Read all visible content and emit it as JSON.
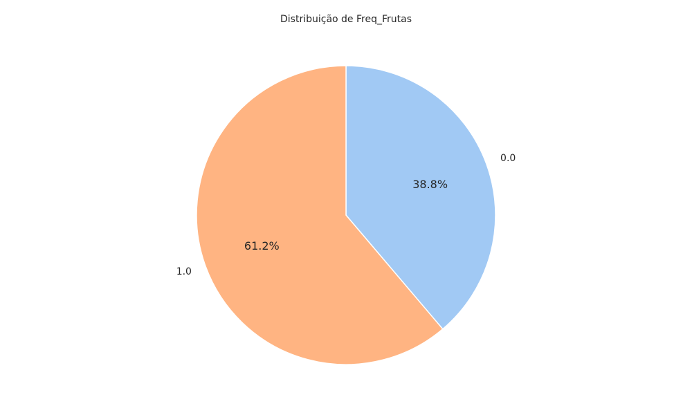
{
  "chart_data": {
    "type": "pie",
    "title": "Distribuição de Freq_Frutas",
    "slices": [
      {
        "label": "0.0",
        "value": 38.8,
        "pct_label": "38.8%",
        "color": "#a1c9f4"
      },
      {
        "label": "1.0",
        "value": 61.2,
        "pct_label": "61.2%",
        "color": "#ffb482"
      }
    ],
    "start_angle_deg": 90,
    "direction": "clockwise",
    "edge_color": "#ffffff"
  }
}
